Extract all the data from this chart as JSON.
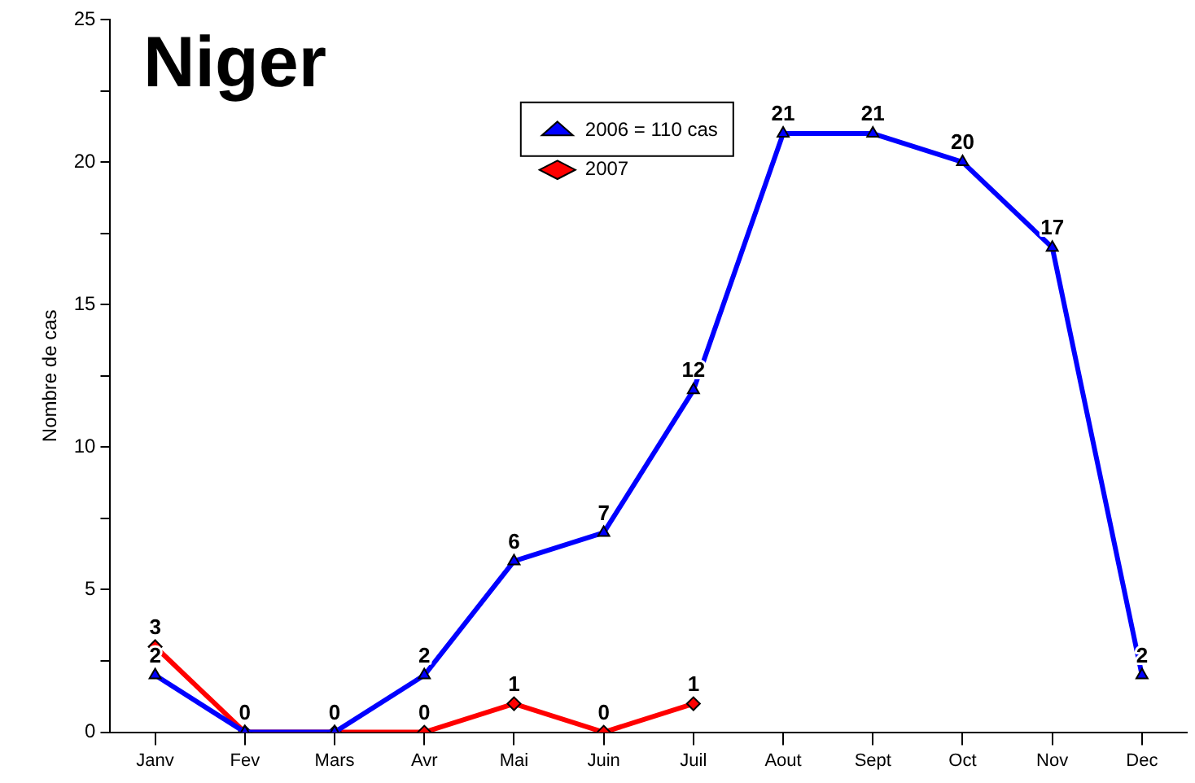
{
  "chart_data": {
    "type": "line",
    "title": "Niger",
    "ylabel": "Nombre de cas",
    "categories": [
      "Janv",
      "Fev",
      "Mars",
      "Avr",
      "Mai",
      "Juin",
      "Juil",
      "Aout",
      "Sept",
      "Oct",
      "Nov",
      "Dec"
    ],
    "series": [
      {
        "name": "2006 = 110 cas",
        "color": "#0000ff",
        "marker": "triangle",
        "values": [
          2,
          0,
          0,
          2,
          6,
          7,
          12,
          21,
          21,
          20,
          17,
          2
        ],
        "value_labels": [
          "2",
          "0",
          "0",
          "2",
          "6",
          "7",
          "12",
          "21",
          "21",
          "20",
          "17",
          "2"
        ]
      },
      {
        "name": "2007",
        "color": "#ff0000",
        "marker": "diamond",
        "values": [
          3,
          0,
          0,
          0,
          1,
          0,
          1,
          null,
          null,
          null,
          null,
          null
        ],
        "value_labels": [
          "3",
          null,
          null,
          "0",
          "1",
          "0",
          "1",
          null,
          null,
          null,
          null,
          null
        ]
      }
    ],
    "ylim": [
      0,
      25
    ],
    "yticks": [
      0,
      {
        "value": 2.5,
        "label": null
      },
      5,
      {
        "value": 7.5,
        "label": null
      },
      10,
      {
        "value": 12.5,
        "label": null
      },
      15,
      {
        "value": 17.5,
        "label": null
      },
      20,
      {
        "value": 22.5,
        "label": null
      },
      25
    ],
    "grid": false,
    "legend": "top",
    "line_style": "solid"
  }
}
